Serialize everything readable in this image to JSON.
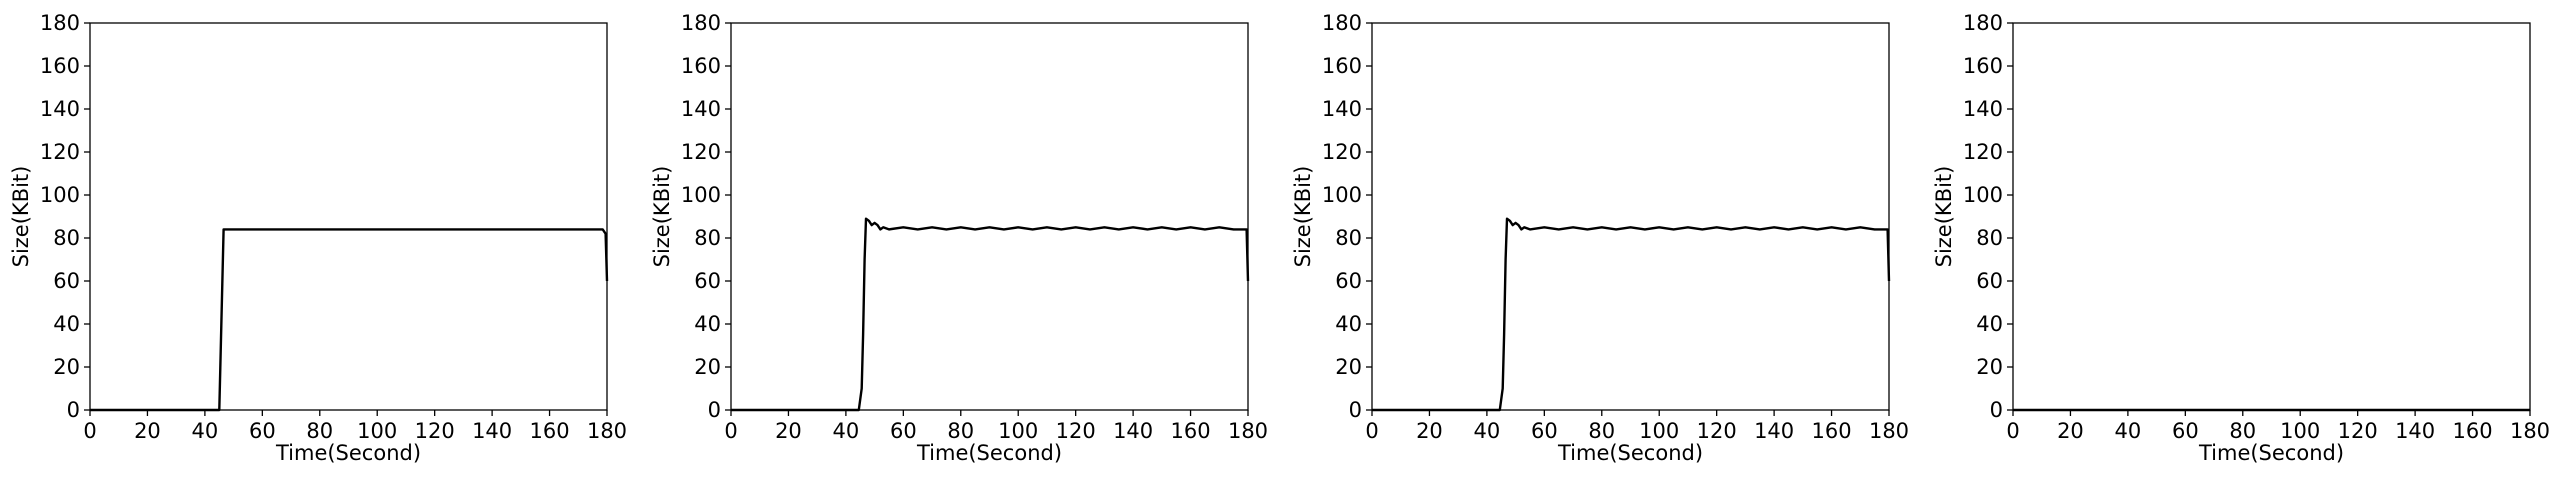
{
  "chart_data": [
    {
      "type": "line",
      "xlabel": "Time(Second)",
      "ylabel": "Size(KBit)",
      "xlim": [
        0,
        180
      ],
      "ylim": [
        0,
        180
      ],
      "xticks": [
        "0",
        "20",
        "40",
        "60",
        "80",
        "100",
        "120",
        "140",
        "160",
        "180"
      ],
      "yticks": [
        "0",
        "20",
        "40",
        "60",
        "80",
        "100",
        "120",
        "140",
        "160",
        "180"
      ],
      "grid": false,
      "series": [
        {
          "x": [
            0,
            45,
            46.5,
            47,
            178.5,
            179.5,
            180
          ],
          "y": [
            0,
            0,
            84,
            84,
            84,
            82,
            60
          ]
        }
      ]
    },
    {
      "type": "line",
      "xlabel": "Time(Second)",
      "ylabel": "Size(KBit)",
      "xlim": [
        0,
        180
      ],
      "ylim": [
        0,
        180
      ],
      "xticks": [
        "0",
        "20",
        "40",
        "60",
        "80",
        "100",
        "120",
        "140",
        "160",
        "180"
      ],
      "yticks": [
        "0",
        "20",
        "40",
        "60",
        "80",
        "100",
        "120",
        "140",
        "160",
        "180"
      ],
      "grid": false,
      "series": [
        {
          "x": [
            0,
            44.5,
            45.5,
            46,
            46.5,
            47,
            48,
            49,
            50,
            51,
            52,
            53,
            55,
            60,
            65,
            70,
            75,
            80,
            85,
            90,
            95,
            100,
            105,
            110,
            115,
            120,
            125,
            130,
            135,
            140,
            145,
            150,
            155,
            160,
            165,
            170,
            175,
            179.5,
            180
          ],
          "y": [
            0,
            0,
            10,
            35,
            70,
            89,
            88,
            86,
            87,
            86,
            84,
            85,
            84,
            85,
            84,
            85,
            84,
            85,
            84,
            85,
            84,
            85,
            84,
            85,
            84,
            85,
            84,
            85,
            84,
            85,
            84,
            85,
            84,
            85,
            84,
            85,
            84,
            84,
            60
          ]
        }
      ]
    },
    {
      "type": "line",
      "xlabel": "Time(Second)",
      "ylabel": "Size(KBit)",
      "xlim": [
        0,
        180
      ],
      "ylim": [
        0,
        180
      ],
      "xticks": [
        "0",
        "20",
        "40",
        "60",
        "80",
        "100",
        "120",
        "140",
        "160",
        "180"
      ],
      "yticks": [
        "0",
        "20",
        "40",
        "60",
        "80",
        "100",
        "120",
        "140",
        "160",
        "180"
      ],
      "grid": false,
      "series": [
        {
          "x": [
            0,
            44.5,
            45.5,
            46,
            46.5,
            47,
            48,
            49,
            50,
            51,
            52,
            53,
            55,
            60,
            65,
            70,
            75,
            80,
            85,
            90,
            95,
            100,
            105,
            110,
            115,
            120,
            125,
            130,
            135,
            140,
            145,
            150,
            155,
            160,
            165,
            170,
            175,
            179.5,
            180
          ],
          "y": [
            0,
            0,
            10,
            35,
            70,
            89,
            88,
            86,
            87,
            86,
            84,
            85,
            84,
            85,
            84,
            85,
            84,
            85,
            84,
            85,
            84,
            85,
            84,
            85,
            84,
            85,
            84,
            85,
            84,
            85,
            84,
            85,
            84,
            85,
            84,
            85,
            84,
            84,
            60
          ]
        }
      ]
    },
    {
      "type": "line",
      "xlabel": "Time(Second)",
      "ylabel": "Size(KBit)",
      "xlim": [
        0,
        180
      ],
      "ylim": [
        0,
        180
      ],
      "xticks": [
        "0",
        "20",
        "40",
        "60",
        "80",
        "100",
        "120",
        "140",
        "160",
        "180"
      ],
      "yticks": [
        "0",
        "20",
        "40",
        "60",
        "80",
        "100",
        "120",
        "140",
        "160",
        "180"
      ],
      "grid": false,
      "series": [
        {
          "x": [
            0,
            180
          ],
          "y": [
            0,
            0
          ]
        }
      ]
    }
  ]
}
